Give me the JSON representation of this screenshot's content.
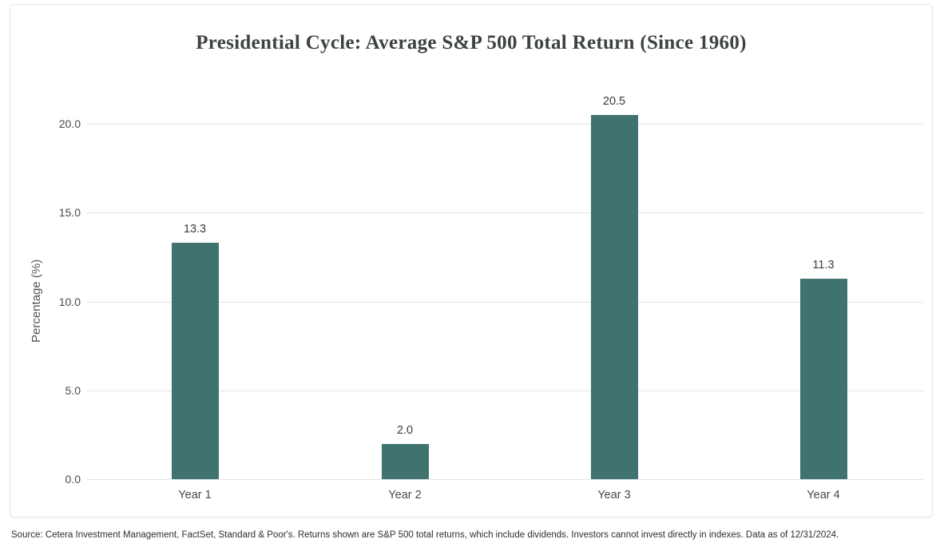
{
  "title": "Presidential Cycle: Average S&P 500 Total Return (Since 1960)",
  "source_note": "Source: Cetera Investment Management, FactSet, Standard & Poor's. Returns shown are S&P 500 total returns, which include dividends. Investors cannot invest directly in indexes. Data as of 12/31/2024.",
  "colors": {
    "bar": "#40736f",
    "gridline": "#e3e3e3",
    "title_text": "#3d4341",
    "axis_text": "#4b4b4b",
    "card_border": "#e7e7e7"
  },
  "chart_data": {
    "type": "bar",
    "title": "Presidential Cycle: Average S&P 500 Total Return (Since 1960)",
    "categories": [
      "Year 1",
      "Year 2",
      "Year 3",
      "Year 4"
    ],
    "values": [
      13.3,
      2.0,
      20.5,
      11.3
    ],
    "value_labels": [
      "13.3",
      "2.0",
      "20.5",
      "11.3"
    ],
    "xlabel": "",
    "ylabel": "Percentage (%)",
    "yticks": [
      0.0,
      5.0,
      10.0,
      15.0,
      20.0
    ],
    "ytick_labels": [
      "0.0",
      "5.0",
      "10.0",
      "15.0",
      "20.0"
    ],
    "ylim": [
      0,
      22.4
    ],
    "grid": "horizontal",
    "legend": "none"
  }
}
